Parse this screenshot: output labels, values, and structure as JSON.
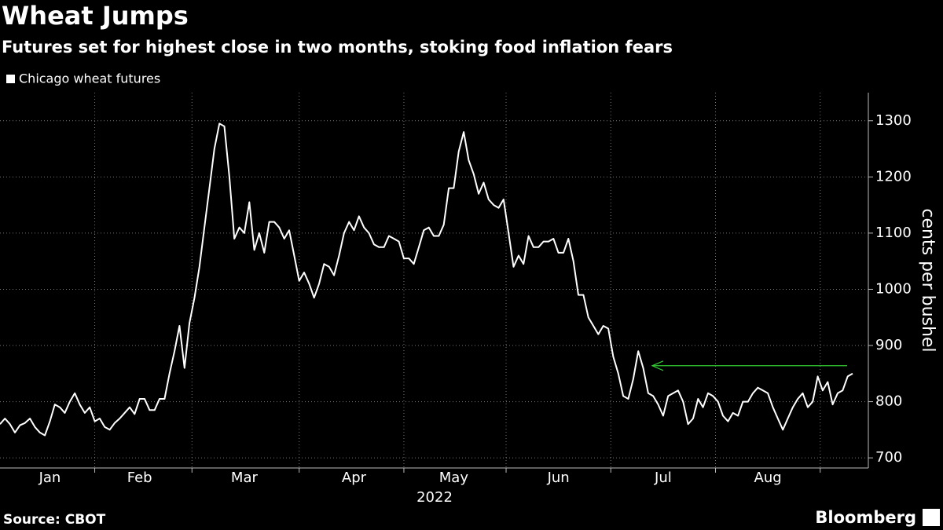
{
  "chart_data": {
    "type": "line",
    "title": "Wheat Jumps",
    "subtitle": "Futures set for highest close in two months, stoking food inflation fears",
    "legend": "Chicago wheat futures",
    "xlabel": "2022",
    "ylabel": "cents per bushel",
    "source": "Source: CBOT",
    "brand": "Bloomberg",
    "color": "#ffffff",
    "grid": true,
    "ylim": [
      682,
      1350
    ],
    "yticks": [
      700,
      800,
      900,
      1000,
      1100,
      1200,
      1300
    ],
    "reference_line": {
      "value": 864,
      "color": "#33cc33"
    },
    "categories": [
      null,
      null,
      null,
      null,
      null,
      null,
      null,
      null,
      null,
      null,
      "Jan",
      null,
      null,
      null,
      null,
      null,
      null,
      null,
      null,
      null,
      null,
      null,
      null,
      null,
      null,
      null,
      null,
      null,
      "Feb",
      null,
      null,
      null,
      null,
      null,
      null,
      null,
      null,
      null,
      null,
      null,
      null,
      null,
      null,
      null,
      null,
      null,
      null,
      null,
      null,
      "Mar",
      null,
      null,
      null,
      null,
      null,
      null,
      null,
      null,
      null,
      null,
      null,
      null,
      null,
      null,
      null,
      null,
      null,
      null,
      null,
      null,
      null,
      "Apr",
      null,
      null,
      null,
      null,
      null,
      null,
      null,
      null,
      null,
      null,
      null,
      null,
      null,
      null,
      null,
      null,
      null,
      null,
      null,
      "May",
      null,
      null,
      null,
      null,
      null,
      null,
      null,
      null,
      null,
      null,
      null,
      null,
      null,
      null,
      null,
      null,
      null,
      null,
      null,
      null,
      "Jun",
      null,
      null,
      null,
      null,
      null,
      null,
      null,
      null,
      null,
      null,
      null,
      null,
      null,
      null,
      null,
      null,
      null,
      null,
      null,
      null,
      "Jul",
      null,
      null,
      null,
      null,
      null,
      null,
      null,
      null,
      null,
      null,
      null,
      null,
      null,
      null,
      null,
      null,
      null,
      null,
      null,
      null,
      "Aug",
      null,
      null,
      null,
      null,
      null,
      null,
      null,
      null,
      null,
      null,
      null,
      null,
      null,
      null,
      null,
      null,
      null
    ],
    "values": [
      760,
      770,
      760,
      745,
      758,
      762,
      770,
      755,
      745,
      740,
      765,
      795,
      790,
      780,
      800,
      815,
      795,
      780,
      790,
      765,
      770,
      755,
      750,
      762,
      770,
      780,
      790,
      778,
      805,
      805,
      785,
      785,
      805,
      805,
      850,
      890,
      935,
      860,
      940,
      985,
      1040,
      1110,
      1180,
      1250,
      1295,
      1290,
      1200,
      1090,
      1110,
      1100,
      1155,
      1070,
      1100,
      1065,
      1120,
      1120,
      1110,
      1090,
      1105,
      1060,
      1015,
      1030,
      1010,
      985,
      1010,
      1045,
      1040,
      1025,
      1060,
      1100,
      1120,
      1105,
      1130,
      1110,
      1100,
      1080,
      1075,
      1075,
      1095,
      1090,
      1085,
      1055,
      1055,
      1045,
      1075,
      1105,
      1110,
      1095,
      1095,
      1115,
      1180,
      1180,
      1245,
      1280,
      1230,
      1205,
      1170,
      1190,
      1160,
      1150,
      1145,
      1160,
      1100,
      1040,
      1060,
      1045,
      1095,
      1075,
      1075,
      1085,
      1085,
      1090,
      1065,
      1065,
      1090,
      1050,
      990,
      990,
      950,
      935,
      920,
      935,
      930,
      880,
      850,
      810,
      805,
      840,
      890,
      860,
      815,
      810,
      795,
      775,
      810,
      815,
      820,
      800,
      760,
      770,
      805,
      790,
      815,
      810,
      800,
      775,
      765,
      780,
      775,
      800,
      800,
      815,
      825,
      820,
      815,
      790,
      770,
      750,
      770,
      790,
      805,
      815,
      790,
      800,
      845,
      820,
      835,
      795,
      815,
      820,
      845,
      850
    ]
  }
}
